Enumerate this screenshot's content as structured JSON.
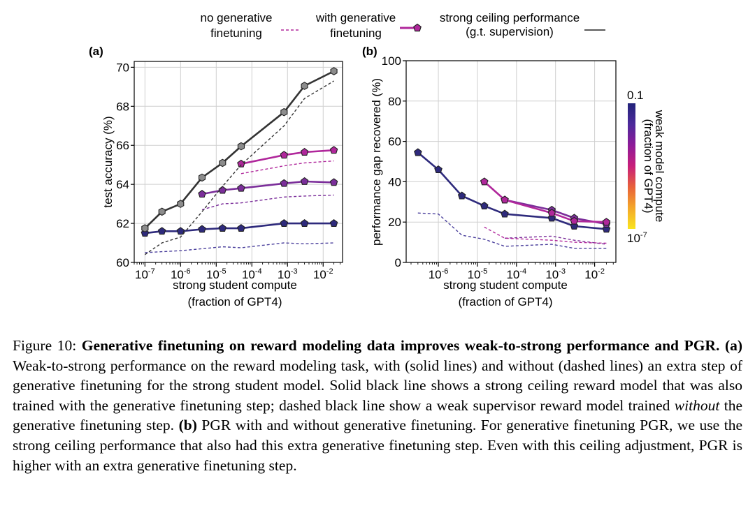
{
  "legend": {
    "no_gen_label": [
      "no generative",
      "finetuning"
    ],
    "with_gen_label": [
      "with generative",
      "finetuning"
    ],
    "ceiling_label": [
      "strong ceiling performance",
      "(g.t. supervision)"
    ]
  },
  "colorbar": {
    "label_lines": [
      "weak model compute",
      "(fraction of GPT4)"
    ],
    "top_label": "0.1",
    "bottom_label": "10",
    "bottom_exp": "-7",
    "colors": [
      "#f9e41f",
      "#f4a82a",
      "#e8613a",
      "#c81f7a",
      "#8e1b99",
      "#4c2a9b",
      "#22247a"
    ]
  },
  "chart_data": [
    {
      "type": "line",
      "panel_label": "(a)",
      "xlabel": [
        "strong student compute",
        "(fraction of GPT4)"
      ],
      "ylabel": "test accuracy (%)",
      "xscale": "log",
      "xlim": [
        5e-08,
        0.035
      ],
      "ylim": [
        60,
        70.3
      ],
      "yticks": [
        60,
        62,
        64,
        66,
        68,
        70
      ],
      "xticks": [
        {
          "v": 1e-07,
          "base": "10",
          "exp": "-7"
        },
        {
          "v": 1e-06,
          "base": "10",
          "exp": "-6"
        },
        {
          "v": 1e-05,
          "base": "10",
          "exp": "-5"
        },
        {
          "v": 0.0001,
          "base": "10",
          "exp": "-4"
        },
        {
          "v": 0.001,
          "base": "10",
          "exp": "-3"
        },
        {
          "v": 0.01,
          "base": "10",
          "exp": "-2"
        }
      ],
      "grid": true,
      "series": [
        {
          "style": "solid",
          "color": "#2e2a7c",
          "marker": "pentagon",
          "x": [
            1e-07,
            3e-07,
            1e-06,
            4e-06,
            1.5e-05,
            5e-05,
            0.0008,
            0.003,
            0.02
          ],
          "y": [
            61.5,
            61.6,
            61.6,
            61.7,
            61.75,
            61.75,
            62.0,
            62.0,
            62.0
          ]
        },
        {
          "style": "dashed",
          "color": "#4a3f9c",
          "x": [
            1e-07,
            3e-07,
            1e-06,
            4e-06,
            1.5e-05,
            5e-05,
            0.0008,
            0.003,
            0.02
          ],
          "y": [
            60.5,
            60.55,
            60.6,
            60.7,
            60.8,
            60.75,
            61.0,
            60.95,
            61.0
          ]
        },
        {
          "style": "solid",
          "color": "#7b2e9a",
          "marker": "pentagon",
          "x": [
            4e-06,
            1.5e-05,
            5e-05,
            0.0008,
            0.003,
            0.02
          ],
          "y": [
            63.5,
            63.7,
            63.8,
            64.05,
            64.15,
            64.1
          ]
        },
        {
          "style": "dashed",
          "color": "#7b2e9a",
          "x": [
            4e-06,
            1.5e-05,
            5e-05,
            0.0008,
            0.003,
            0.02
          ],
          "y": [
            62.7,
            63.0,
            63.05,
            63.35,
            63.4,
            63.45
          ]
        },
        {
          "style": "solid",
          "color": "#b0279b",
          "marker": "pentagon",
          "x": [
            5e-05,
            0.0008,
            0.003,
            0.02
          ],
          "y": [
            65.05,
            65.5,
            65.65,
            65.75
          ]
        },
        {
          "style": "dashed",
          "color": "#b0279b",
          "x": [
            5e-05,
            0.0008,
            0.003,
            0.02
          ],
          "y": [
            64.55,
            64.95,
            65.1,
            65.2
          ]
        },
        {
          "style": "solid",
          "color": "#333333",
          "marker": "hexagon",
          "fill": "#8c8c8c",
          "x": [
            1e-07,
            3e-07,
            1e-06,
            4e-06,
            1.5e-05,
            5e-05,
            0.0008,
            0.003,
            0.02
          ],
          "y": [
            61.75,
            62.6,
            63.0,
            64.35,
            65.1,
            65.95,
            67.7,
            69.05,
            69.8
          ]
        },
        {
          "style": "dashed",
          "color": "#333333",
          "x": [
            1e-07,
            3e-07,
            1e-06,
            4e-06,
            1.5e-05,
            5e-05,
            0.0008,
            0.003,
            0.02
          ],
          "y": [
            60.4,
            61.0,
            61.3,
            62.6,
            63.9,
            65.0,
            67.0,
            68.4,
            69.3
          ]
        }
      ]
    },
    {
      "type": "line",
      "panel_label": "(b)",
      "xlabel": [
        "strong student compute",
        "(fraction of GPT4)"
      ],
      "ylabel": "performance gap recovered (%)",
      "xscale": "log",
      "xlim": [
        1.5e-07,
        0.035
      ],
      "ylim": [
        0,
        100
      ],
      "yticks": [
        0,
        20,
        40,
        60,
        80,
        100
      ],
      "xticks": [
        {
          "v": 1e-06,
          "base": "10",
          "exp": "-6"
        },
        {
          "v": 1e-05,
          "base": "10",
          "exp": "-5"
        },
        {
          "v": 0.0001,
          "base": "10",
          "exp": "-4"
        },
        {
          "v": 0.001,
          "base": "10",
          "exp": "-3"
        },
        {
          "v": 0.01,
          "base": "10",
          "exp": "-2"
        }
      ],
      "grid": true,
      "series": [
        {
          "style": "solid",
          "color": "#2e2a7c",
          "marker": "pentagon",
          "x": [
            3e-07,
            1e-06,
            4e-06,
            1.5e-05,
            5e-05,
            0.0008,
            0.003,
            0.02
          ],
          "y": [
            54.5,
            46.0,
            33.0,
            28.0,
            24.0,
            22.0,
            18.0,
            16.5
          ]
        },
        {
          "style": "dashed",
          "color": "#4a3f9c",
          "x": [
            3e-07,
            1e-06,
            4e-06,
            1.5e-05,
            5e-05,
            0.0008,
            0.003,
            0.02
          ],
          "y": [
            24.5,
            24.0,
            13.5,
            11.5,
            8.0,
            9.0,
            7.0,
            7.0
          ]
        },
        {
          "style": "solid",
          "color": "#7b2e9a",
          "marker": "pentagon",
          "x": [
            5e-05,
            0.0008,
            0.003,
            0.02
          ],
          "y": [
            31.0,
            26.0,
            22.0,
            19.0
          ]
        },
        {
          "style": "dashed",
          "color": "#7b2e9a",
          "x": [
            5e-05,
            0.0008,
            0.003,
            0.02
          ],
          "y": [
            12.0,
            13.0,
            11.0,
            9.0
          ]
        },
        {
          "style": "solid",
          "color": "#b0279b",
          "marker": "pentagon",
          "x": [
            1.5e-05,
            5e-05,
            0.0008,
            0.003,
            0.02
          ],
          "y": [
            40.0,
            31.0,
            24.5,
            20.5,
            20.0
          ]
        },
        {
          "style": "dashed",
          "color": "#b0279b",
          "x": [
            1.5e-05,
            5e-05,
            0.0008,
            0.003,
            0.02
          ],
          "y": [
            17.5,
            12.0,
            11.0,
            10.0,
            9.5
          ]
        }
      ]
    }
  ],
  "caption": {
    "figure_label": "Figure 10:",
    "title": "Generative finetuning on reward modeling data improves weak-to-strong performance and PGR.",
    "a_label": "(a)",
    "a_text": "Weak-to-strong performance on the reward modeling task, with (solid lines) and without (dashed lines) an extra step of generative finetuning for the strong student model. Solid black line shows a strong ceiling reward model that was also trained with the generative finetuning step; dashed black line show a weak supervisor reward model trained",
    "a_emph": "without",
    "a_text2": "the generative finetuning step.",
    "b_label": "(b)",
    "b_text": "PGR with and without generative finetuning. For generative finetuning PGR, we use the strong ceiling performance that also had this extra generative finetuning step. Even with this ceiling adjustment, PGR is higher with an extra generative finetuning step."
  }
}
